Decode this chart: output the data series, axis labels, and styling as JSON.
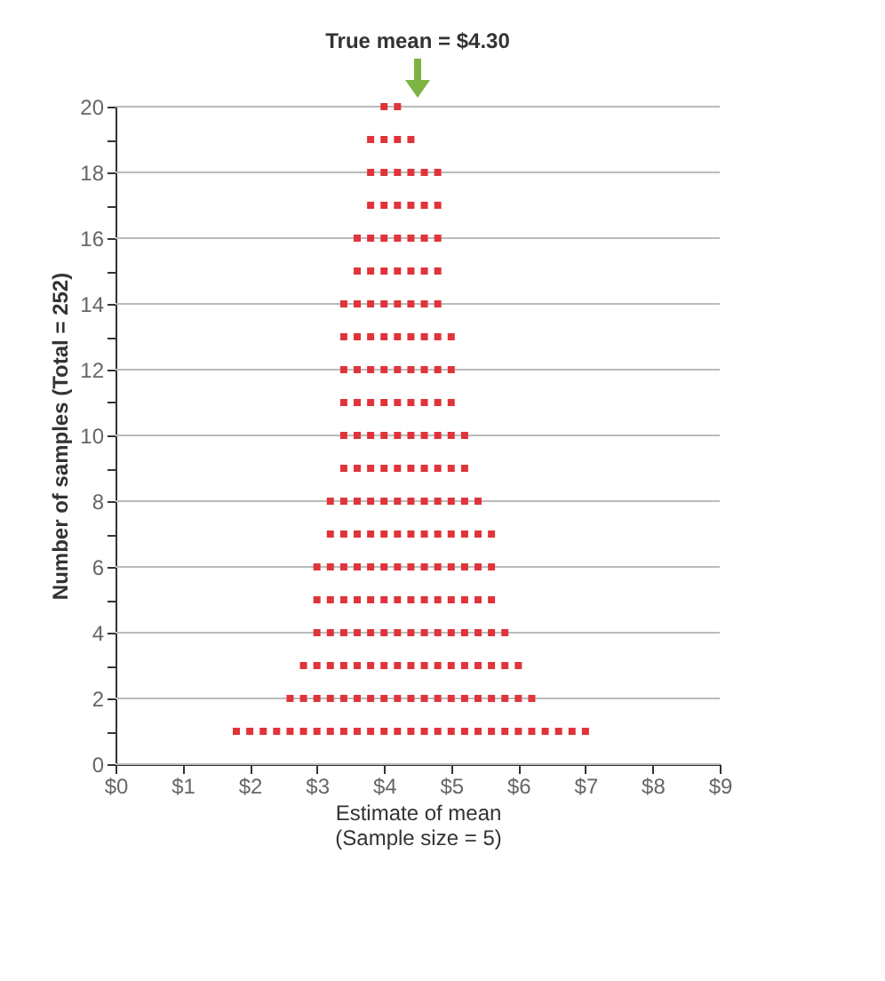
{
  "chart_data": {
    "type": "scatter",
    "xlabel": "Estimate of mean",
    "ylabel": "Number of samples (Total = 252)",
    "annotations": [
      "True mean = $4.30",
      "(Sample size = 5)"
    ],
    "xlim": [
      0,
      9
    ],
    "xticks": [
      {
        "value": 0,
        "label": "$0"
      },
      {
        "value": 1,
        "label": "$1"
      },
      {
        "value": 2,
        "label": "$2"
      },
      {
        "value": 3,
        "label": "$3"
      },
      {
        "value": 4,
        "label": "$4"
      },
      {
        "value": 5,
        "label": "$5"
      },
      {
        "value": 6,
        "label": "$6"
      },
      {
        "value": 7,
        "label": "$7"
      },
      {
        "value": 8,
        "label": "$8"
      },
      {
        "value": 9,
        "label": "$9"
      }
    ],
    "ylim": [
      0,
      20
    ],
    "yticks": [
      0,
      {
        "value": 1,
        "label": null
      },
      2,
      {
        "value": 3,
        "label": null
      },
      4,
      {
        "value": 5,
        "label": null
      },
      6,
      {
        "value": 7,
        "label": null
      },
      8,
      {
        "value": 9,
        "label": null
      },
      10,
      {
        "value": 11,
        "label": null
      },
      12,
      {
        "value": 13,
        "label": null
      },
      14,
      {
        "value": 15,
        "label": null
      },
      16,
      {
        "value": 17,
        "label": null
      },
      18,
      {
        "value": 19,
        "label": null
      },
      20
    ],
    "grid": "y",
    "marker": "square",
    "legend": false,
    "series": [
      {
        "color": "#e0343a",
        "x": [
          1.8,
          2,
          2.2,
          2.4,
          2.6,
          2.8,
          3,
          3.2,
          3.4,
          3.6,
          3.8,
          4,
          4.2,
          4.4,
          4.6,
          4.8,
          5,
          5.2,
          5.4,
          5.6,
          5.8,
          6,
          6.2,
          6.4,
          6.6,
          6.8,
          7
        ],
        "values": [
          1,
          1,
          1,
          1,
          1,
          1,
          1,
          1,
          1,
          1,
          1,
          1,
          1,
          1,
          1,
          1,
          1,
          1,
          1,
          1,
          1,
          1,
          1,
          1,
          1,
          1,
          1
        ]
      },
      {
        "color": "#e0343a",
        "x": [
          2.6,
          2.8,
          3,
          3.2,
          3.4,
          3.6,
          3.8,
          4,
          4.2,
          4.4,
          4.6,
          4.8,
          5,
          5.2,
          5.4,
          5.6,
          5.8,
          6,
          6.2
        ],
        "values": [
          2,
          2,
          2,
          2,
          2,
          2,
          2,
          2,
          2,
          2,
          2,
          2,
          2,
          2,
          2,
          2,
          2,
          2,
          2
        ]
      },
      {
        "color": "#e0343a",
        "x": [
          2.8,
          3,
          3.2,
          3.4,
          3.6,
          3.8,
          4,
          4.2,
          4.4,
          4.6,
          4.8,
          5,
          5.2,
          5.4,
          5.6,
          5.8,
          6
        ],
        "values": [
          3,
          3,
          3,
          3,
          3,
          3,
          3,
          3,
          3,
          3,
          3,
          3,
          3,
          3,
          3,
          3,
          3
        ]
      },
      {
        "color": "#e0343a",
        "x": [
          3,
          3.2,
          3.4,
          3.6,
          3.8,
          4,
          4.2,
          4.4,
          4.6,
          4.8,
          5,
          5.2,
          5.4,
          5.6,
          5.8
        ],
        "values": [
          4,
          4,
          4,
          4,
          4,
          4,
          4,
          4,
          4,
          4,
          4,
          4,
          4,
          4,
          4
        ]
      },
      {
        "color": "#e0343a",
        "x": [
          3,
          3.2,
          3.4,
          3.6,
          3.8,
          4,
          4.2,
          4.4,
          4.6,
          4.8,
          5,
          5.2,
          5.4,
          5.6
        ],
        "values": [
          5,
          5,
          5,
          5,
          5,
          5,
          5,
          5,
          5,
          5,
          5,
          5,
          5,
          5
        ]
      },
      {
        "color": "#e0343a",
        "x": [
          3,
          3.2,
          3.4,
          3.6,
          3.8,
          4,
          4.2,
          4.4,
          4.6,
          4.8,
          5,
          5.2,
          5.4,
          5.6
        ],
        "values": [
          6,
          6,
          6,
          6,
          6,
          6,
          6,
          6,
          6,
          6,
          6,
          6,
          6,
          6
        ]
      },
      {
        "color": "#e0343a",
        "x": [
          3.2,
          3.4,
          3.6,
          3.8,
          4,
          4.2,
          4.4,
          4.6,
          4.8,
          5,
          5.2,
          5.4,
          5.6
        ],
        "values": [
          7,
          7,
          7,
          7,
          7,
          7,
          7,
          7,
          7,
          7,
          7,
          7,
          7
        ]
      },
      {
        "color": "#e0343a",
        "x": [
          3.2,
          3.4,
          3.6,
          3.8,
          4,
          4.2,
          4.4,
          4.6,
          4.8,
          5,
          5.2,
          5.4
        ],
        "values": [
          8,
          8,
          8,
          8,
          8,
          8,
          8,
          8,
          8,
          8,
          8,
          8
        ]
      },
      {
        "color": "#e0343a",
        "x": [
          3.4,
          3.6,
          3.8,
          4,
          4.2,
          4.4,
          4.6,
          4.8,
          5,
          5.2
        ],
        "values": [
          9,
          9,
          9,
          9,
          9,
          9,
          9,
          9,
          9,
          9
        ]
      },
      {
        "color": "#e0343a",
        "x": [
          3.4,
          3.6,
          3.8,
          4,
          4.2,
          4.4,
          4.6,
          4.8,
          5,
          5.2
        ],
        "values": [
          10,
          10,
          10,
          10,
          10,
          10,
          10,
          10,
          10,
          10
        ]
      },
      {
        "color": "#e0343a",
        "x": [
          3.4,
          3.6,
          3.8,
          4,
          4.2,
          4.4,
          4.6,
          4.8,
          5
        ],
        "values": [
          11,
          11,
          11,
          11,
          11,
          11,
          11,
          11,
          11
        ]
      },
      {
        "color": "#e0343a",
        "x": [
          3.4,
          3.6,
          3.8,
          4,
          4.2,
          4.4,
          4.6,
          4.8,
          5
        ],
        "values": [
          12,
          12,
          12,
          12,
          12,
          12,
          12,
          12,
          12
        ]
      },
      {
        "color": "#e0343a",
        "x": [
          3.4,
          3.6,
          3.8,
          4,
          4.2,
          4.4,
          4.6,
          4.8,
          5
        ],
        "values": [
          13,
          13,
          13,
          13,
          13,
          13,
          13,
          13,
          13
        ]
      },
      {
        "color": "#e0343a",
        "x": [
          3.4,
          3.6,
          3.8,
          4,
          4.2,
          4.4,
          4.6,
          4.8
        ],
        "values": [
          14,
          14,
          14,
          14,
          14,
          14,
          14,
          14
        ]
      },
      {
        "color": "#e0343a",
        "x": [
          3.6,
          3.8,
          4,
          4.2,
          4.4,
          4.6,
          4.8
        ],
        "values": [
          15,
          15,
          15,
          15,
          15,
          15,
          15
        ]
      },
      {
        "color": "#e0343a",
        "x": [
          3.6,
          3.8,
          4,
          4.2,
          4.4,
          4.6,
          4.8
        ],
        "values": [
          16,
          16,
          16,
          16,
          16,
          16,
          16
        ]
      },
      {
        "color": "#e0343a",
        "x": [
          3.8,
          4,
          4.2,
          4.4,
          4.6,
          4.8
        ],
        "values": [
          17,
          17,
          17,
          17,
          17,
          17
        ]
      },
      {
        "color": "#e0343a",
        "x": [
          3.8,
          4,
          4.2,
          4.4,
          4.6,
          4.8
        ],
        "values": [
          18,
          18,
          18,
          18,
          18,
          18
        ]
      },
      {
        "color": "#e0343a",
        "x": [
          3.8,
          4,
          4.2,
          4.4
        ],
        "values": [
          19,
          19,
          19,
          19
        ]
      },
      {
        "color": "#e0343a",
        "x": [
          4,
          4.2
        ],
        "values": [
          20,
          20
        ]
      }
    ]
  }
}
